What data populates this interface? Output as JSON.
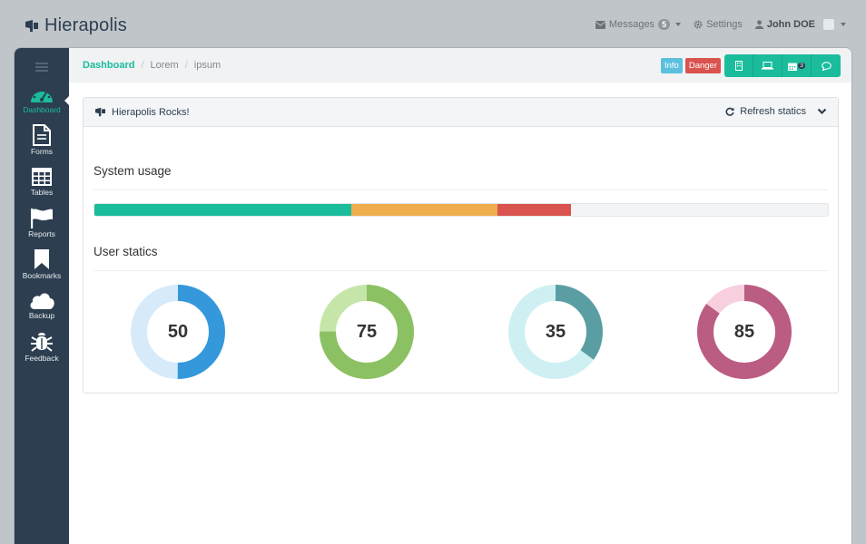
{
  "brand": {
    "name": "Hierapolis"
  },
  "topnav": {
    "messages_label": "Messages",
    "messages_count": "5",
    "settings_label": "Settings",
    "user_name": "John DOE"
  },
  "sidebar": {
    "items": [
      {
        "label": "Dashboard",
        "icon": "dashboard-icon",
        "active": true
      },
      {
        "label": "Forms",
        "icon": "document-icon"
      },
      {
        "label": "Tables",
        "icon": "table-icon"
      },
      {
        "label": "Reports",
        "icon": "flag-icon"
      },
      {
        "label": "Bookmarks",
        "icon": "bookmark-icon"
      },
      {
        "label": "Backup",
        "icon": "cloud-icon"
      },
      {
        "label": "Feedback",
        "icon": "bug-icon"
      }
    ]
  },
  "breadcrumb": {
    "items": [
      "Dashboard",
      "Lorem",
      "ipsum"
    ]
  },
  "labels": {
    "info": "Info",
    "danger": "Danger"
  },
  "toolbar": {
    "calendar_count": "3"
  },
  "panel": {
    "title": "Hierapolis Rocks!",
    "refresh_label": "Refresh statics",
    "system_usage_title": "System usage",
    "user_statics_title": "User statics"
  },
  "system_usage": [
    {
      "percent": 35,
      "color": "#1abc9c"
    },
    {
      "percent": 20,
      "color": "#f0ad4e"
    },
    {
      "percent": 10,
      "color": "#d9534f"
    }
  ],
  "user_statics": [
    {
      "value": "50",
      "percent": 50,
      "color": "#3498db",
      "track": "#d6eafa"
    },
    {
      "value": "75",
      "percent": 75,
      "color": "#8bc163",
      "track": "#c5e6a8"
    },
    {
      "value": "35",
      "percent": 35,
      "color": "#5a9ea3",
      "track": "#cff0f3"
    },
    {
      "value": "85",
      "percent": 85,
      "color": "#bb5c82",
      "track": "#f7cfdf"
    }
  ]
}
